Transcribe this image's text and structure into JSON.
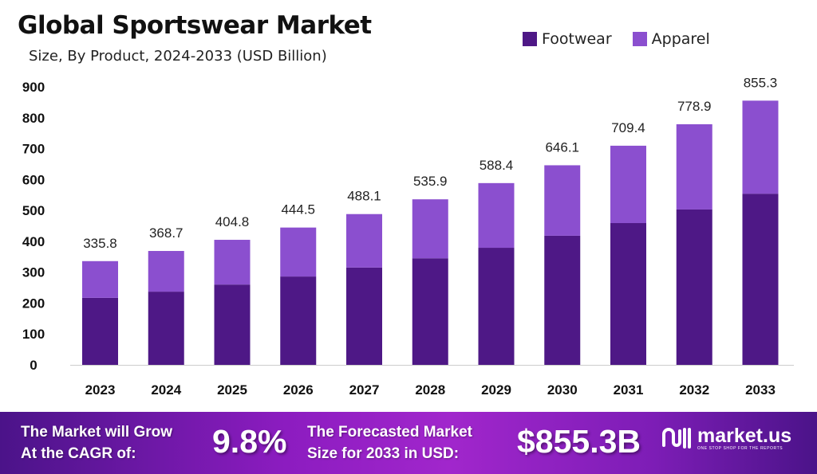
{
  "chart_data": {
    "type": "bar",
    "stacked": true,
    "title": "Global Sportswear Market",
    "subtitle": "Size, By Product, 2024-2033 (USD Billion)",
    "xlabel": "",
    "ylabel": "",
    "ylim": [
      0,
      900
    ],
    "yticks": [
      0,
      100,
      200,
      300,
      400,
      500,
      600,
      700,
      800,
      900
    ],
    "grid": false,
    "legend_position": "top-right",
    "categories": [
      "2023",
      "2024",
      "2025",
      "2026",
      "2027",
      "2028",
      "2029",
      "2030",
      "2031",
      "2032",
      "2033"
    ],
    "series": [
      {
        "name": "Footwear",
        "color": "#4e1886",
        "values": [
          217,
          237,
          260,
          286,
          315,
          345,
          379,
          418,
          459,
          503,
          554
        ]
      },
      {
        "name": "Apparel",
        "color": "#8b4fcf",
        "values": [
          118.8,
          131.7,
          144.8,
          158.5,
          173.1,
          190.9,
          209.4,
          228.1,
          250.4,
          275.9,
          301.3
        ]
      }
    ],
    "totals": [
      "335.8",
      "368.7",
      "404.8",
      "444.5",
      "488.1",
      "535.9",
      "588.4",
      "646.1",
      "709.4",
      "778.9",
      "855.3"
    ]
  },
  "banner": {
    "cagr_label_1": "The Market will Grow",
    "cagr_label_2": "At the CAGR of:",
    "cagr_value": "9.8%",
    "forecast_label_1": "The Forecasted Market",
    "forecast_label_2": "Size for 2033 in USD:",
    "forecast_value": "$855.3B",
    "logo_text": "market.us",
    "logo_tagline": "ONE STOP SHOP FOR THE REPORTS"
  }
}
